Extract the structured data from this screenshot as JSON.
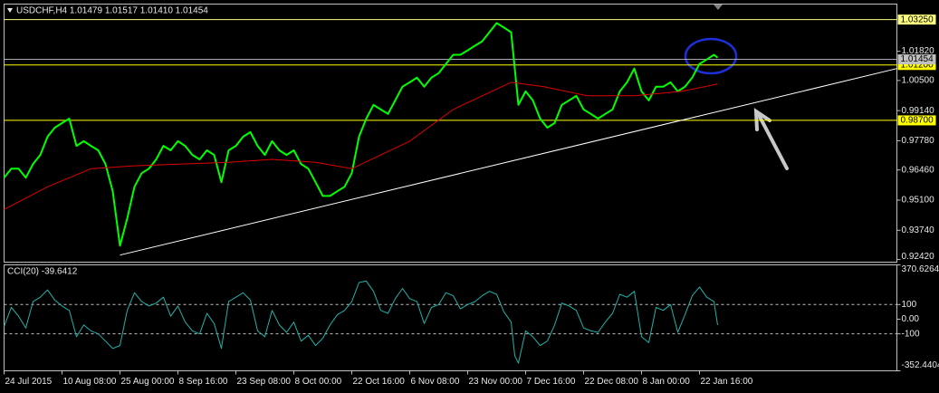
{
  "chart_data": [
    {
      "type": "line",
      "title": "USDCHF,H4  1.01479 1.01517 1.01410 1.01454",
      "xlim": [
        0,
        246.5
      ],
      "x": [
        0,
        2,
        4,
        6,
        8,
        10,
        12,
        14,
        16,
        18,
        20,
        22,
        24,
        26,
        28,
        30,
        32,
        34,
        36,
        38,
        40,
        42,
        44,
        46,
        48,
        50,
        52,
        54,
        56,
        58,
        60,
        62,
        64,
        66,
        68,
        70,
        72,
        74,
        76,
        78,
        80,
        82,
        84,
        86,
        88,
        90,
        92,
        94,
        96,
        98,
        100,
        102,
        104,
        106,
        108,
        110,
        112,
        114,
        116,
        118,
        120,
        122,
        124,
        126,
        128,
        130,
        132,
        134,
        136,
        138,
        140,
        141,
        142,
        144,
        146,
        148,
        150,
        152,
        154,
        156,
        158,
        160,
        162,
        164,
        166,
        168,
        170,
        172,
        174,
        176,
        178,
        180,
        182,
        184,
        186,
        188,
        190,
        192,
        194,
        196,
        197
      ],
      "ylim": [
        0.923,
        1.0395
      ],
      "yticks": [
        {
          "value": 1.0182,
          "label": "1.01820"
        },
        {
          "value": 1.005,
          "label": "1.00500"
        },
        {
          "value": 0.9914,
          "label": "0.99140"
        },
        {
          "value": 0.9778,
          "label": "0.97780"
        },
        {
          "value": 0.9646,
          "label": "0.96460"
        },
        {
          "value": 0.951,
          "label": "0.95100"
        },
        {
          "value": 0.9374,
          "label": "0.93740"
        },
        {
          "value": 0.9242,
          "label": "0.92420"
        }
      ],
      "series": [
        {
          "color": "#00ff00",
          "values": [
            0.9611,
            0.9652,
            0.9652,
            0.9611,
            0.9673,
            0.9714,
            0.9796,
            0.9837,
            0.9858,
            0.9878,
            0.9755,
            0.9776,
            0.9755,
            0.9735,
            0.9673,
            0.955,
            0.9304,
            0.9427,
            0.957,
            0.9632,
            0.9652,
            0.9694,
            0.9755,
            0.9735,
            0.9776,
            0.9755,
            0.9714,
            0.9694,
            0.9735,
            0.9714,
            0.9591,
            0.9735,
            0.9755,
            0.9796,
            0.9817,
            0.9755,
            0.9714,
            0.9776,
            0.9735,
            0.9714,
            0.9735,
            0.9673,
            0.9652,
            0.9591,
            0.9529,
            0.9529,
            0.955,
            0.957,
            0.9632,
            0.9796,
            0.9878,
            0.994,
            0.9919,
            0.9899,
            0.996,
            1.0022,
            1.0042,
            1.0063,
            1.0022,
            1.0063,
            1.0083,
            1.0125,
            1.0166,
            1.0166,
            1.0186,
            1.0207,
            1.0227,
            1.0268,
            1.0309,
            1.0289,
            1.0268,
            1.0104,
            0.994,
            1.0001,
            0.996,
            0.9878,
            0.9837,
            0.9858,
            0.994,
            0.996,
            0.9981,
            0.9919,
            0.9899,
            0.9878,
            0.9899,
            0.9919,
            1.0001,
            1.0042,
            1.0104,
            1.0001,
            0.996,
            1.0022,
            1.0022,
            1.0042,
            1.0001,
            1.0022,
            1.0063,
            1.0125,
            1.0145,
            1.0166,
            1.0153
          ]
        },
        {
          "color": "#e00000",
          "x": [
            0,
            12,
            24,
            36,
            49,
            62,
            74,
            86,
            96,
            104,
            112,
            124,
            132,
            140,
            149,
            161,
            174,
            187,
            197
          ],
          "values": [
            0.9468,
            0.957,
            0.9652,
            0.9665,
            0.9673,
            0.9681,
            0.9694,
            0.9681,
            0.9652,
            0.9714,
            0.9776,
            0.9919,
            0.9981,
            1.0042,
            1.0022,
            0.9981,
            0.9981,
            1.0001,
            1.0034
          ]
        },
        {
          "color": "#ffffff",
          "x": [
            32,
            246.5
          ],
          "values": [
            0.9262,
            1.0104
          ]
        }
      ],
      "levels": [
        {
          "value": 1.0325,
          "label": "1.03250",
          "color": "#ffff80"
        },
        {
          "value": 1.012,
          "label": "1.01200",
          "color": "#ffff00"
        },
        {
          "value": 0.987,
          "label": "0.98700",
          "color": "#ffff00"
        }
      ],
      "last": {
        "value": 1.01454,
        "label": "1.01454",
        "color": "#c0c0c0"
      }
    },
    {
      "type": "line",
      "title": "CCI(20) -39.6412",
      "xlim": [
        0,
        246.5
      ],
      "xticks": [
        {
          "value": 0,
          "label": "24 Jul 2015"
        },
        {
          "value": 16,
          "label": "10 Aug 08:00"
        },
        {
          "value": 32,
          "label": "25 Aug 00:00"
        },
        {
          "value": 48,
          "label": "8 Sep 16:00"
        },
        {
          "value": 64,
          "label": "23 Sep 08:00"
        },
        {
          "value": 80,
          "label": "8 Oct 00:00"
        },
        {
          "value": 96,
          "label": "22 Oct 16:00"
        },
        {
          "value": 112,
          "label": "6 Nov 08:00"
        },
        {
          "value": 128,
          "label": "23 Nov 00:00"
        },
        {
          "value": 144,
          "label": "7 Dec 16:00"
        },
        {
          "value": 160,
          "label": "22 Dec 08:00"
        },
        {
          "value": 176,
          "label": "8 Jan 00:00"
        },
        {
          "value": 192,
          "label": "22 Jan 16:00"
        }
      ],
      "ylim": [
        -352.4404,
        370.6264
      ],
      "yticks": [
        370.6264,
        100,
        {
          "value": 0,
          "label": "0.00"
        },
        -100,
        -352.4404
      ],
      "levels": [
        100,
        -100
      ],
      "series": [
        {
          "color": "#20b2aa",
          "x": [
            0,
            2,
            4,
            6,
            8,
            10,
            12,
            14,
            16,
            18,
            20,
            22,
            24,
            26,
            28,
            30,
            32,
            34,
            36,
            38,
            40,
            42,
            44,
            46,
            48,
            50,
            52,
            54,
            56,
            58,
            60,
            62,
            64,
            66,
            68,
            70,
            72,
            74,
            76,
            78,
            80,
            82,
            84,
            86,
            88,
            90,
            92,
            94,
            96,
            98,
            100,
            102,
            104,
            106,
            108,
            110,
            112,
            114,
            116,
            118,
            120,
            122,
            124,
            126,
            128,
            130,
            132,
            134,
            136,
            138,
            140,
            141,
            142,
            144,
            146,
            148,
            150,
            152,
            154,
            156,
            158,
            160,
            162,
            164,
            166,
            168,
            170,
            172,
            174,
            176,
            178,
            180,
            182,
            184,
            186,
            188,
            190,
            192,
            194,
            196,
            197
          ],
          "values": [
            -50,
            80,
            20,
            -60,
            120,
            150,
            200,
            130,
            90,
            60,
            -120,
            -40,
            -80,
            -100,
            -150,
            -200,
            -180,
            60,
            180,
            120,
            90,
            110,
            150,
            20,
            90,
            -20,
            -80,
            -100,
            40,
            -30,
            -200,
            120,
            150,
            180,
            130,
            -80,
            -120,
            60,
            -40,
            -90,
            -20,
            -150,
            -110,
            -180,
            -130,
            -40,
            30,
            60,
            120,
            250,
            260,
            190,
            60,
            40,
            140,
            210,
            140,
            120,
            -30,
            80,
            100,
            180,
            160,
            70,
            100,
            120,
            160,
            190,
            170,
            50,
            -20,
            -250,
            -300,
            -80,
            -120,
            -180,
            -150,
            -40,
            110,
            90,
            60,
            -60,
            -80,
            -90,
            -20,
            40,
            170,
            150,
            190,
            -120,
            -160,
            80,
            60,
            100,
            -90,
            30,
            160,
            220,
            150,
            120,
            -39.6412
          ]
        }
      ]
    }
  ]
}
